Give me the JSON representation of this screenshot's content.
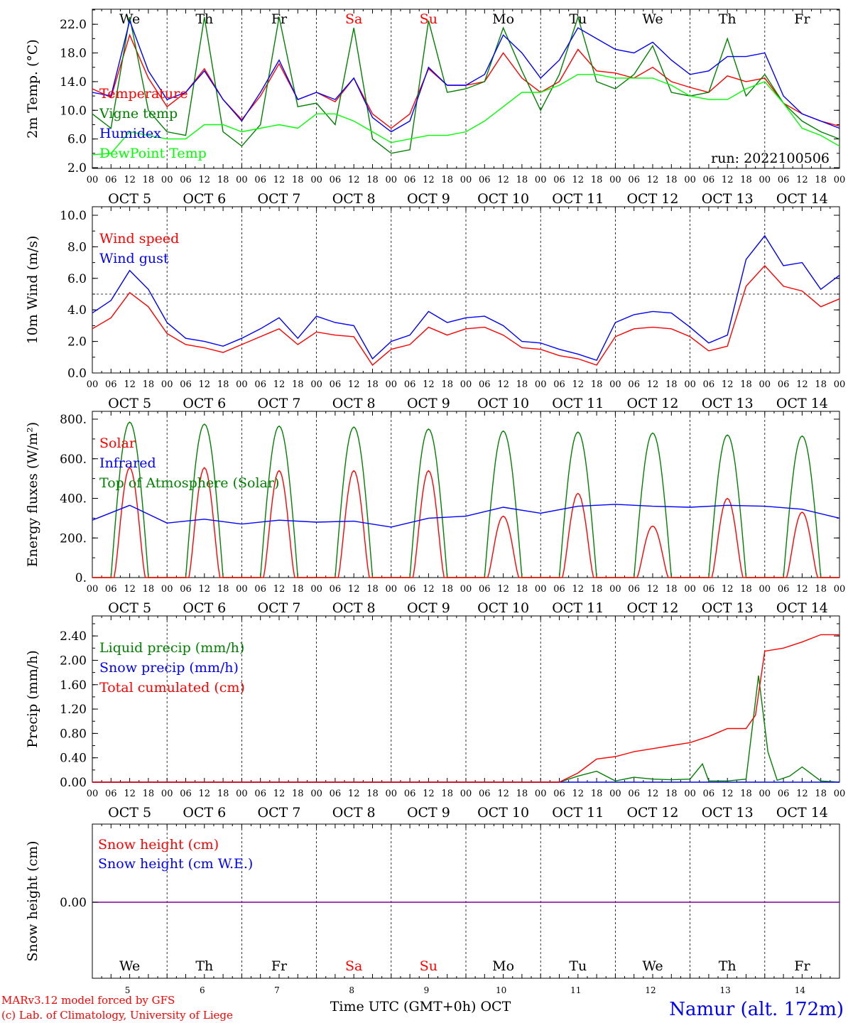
{
  "days": [
    {
      "abbr": "We",
      "date": "5",
      "label": "OCT  5",
      "color": "#000000"
    },
    {
      "abbr": "Th",
      "date": "6",
      "label": "OCT  6",
      "color": "#000000"
    },
    {
      "abbr": "Fr",
      "date": "7",
      "label": "OCT  7",
      "color": "#000000"
    },
    {
      "abbr": "Sa",
      "date": "8",
      "label": "OCT  8",
      "color": "#ff0000"
    },
    {
      "abbr": "Su",
      "date": "9",
      "label": "OCT  9",
      "color": "#ff0000"
    },
    {
      "abbr": "Mo",
      "date": "10",
      "label": "OCT 10",
      "color": "#000000"
    },
    {
      "abbr": "Tu",
      "date": "11",
      "label": "OCT 11",
      "color": "#000000"
    },
    {
      "abbr": "We",
      "date": "12",
      "label": "OCT 12",
      "color": "#000000"
    },
    {
      "abbr": "Th",
      "date": "13",
      "label": "OCT 13",
      "color": "#000000"
    },
    {
      "abbr": "Fr",
      "date": "14",
      "label": "OCT 14",
      "color": "#000000"
    }
  ],
  "hour_ticks": [
    "00",
    "06",
    "12",
    "18"
  ],
  "run_label": "run: 2022100506",
  "footer": {
    "model_line": "MARv3.12 model forced by GFS",
    "lab_line": "(c) Lab. of Climatology, University of Liege",
    "xlabel": "Time UTC (GMT+0h) OCT",
    "station": "Namur (alt. 172m)"
  },
  "chart_data": [
    {
      "type": "line",
      "ylabel": "2m Temp. (°C)",
      "ylim": [
        2.0,
        24.0
      ],
      "yticks": [
        2.0,
        6.0,
        10.0,
        14.0,
        18.0,
        22.0
      ],
      "ytick_labels": [
        "2.0",
        "6.0",
        "10.0",
        "14.0",
        "18.0",
        "22.0"
      ],
      "series": [
        {
          "name": "Temperature",
          "color": "#ff0000",
          "x": [
            0,
            6,
            12,
            18,
            24,
            30,
            36,
            42,
            48,
            54,
            60,
            66,
            72,
            78,
            84,
            90,
            96,
            102,
            108,
            114,
            120,
            126,
            132,
            138,
            144,
            150,
            156,
            162,
            168,
            174,
            180,
            186,
            192,
            198,
            204,
            210,
            216,
            222,
            228,
            234,
            240
          ],
          "y": [
            13.0,
            11.8,
            20.5,
            14.5,
            10.5,
            12.5,
            15.8,
            11.5,
            8.7,
            12.0,
            16.5,
            11.5,
            12.5,
            11.2,
            14.5,
            9.5,
            7.5,
            9.5,
            15.8,
            13.5,
            13.5,
            14.0,
            18.0,
            14.5,
            12.5,
            14.0,
            18.5,
            15.5,
            15.2,
            14.5,
            16.0,
            14.0,
            13.2,
            12.5,
            14.8,
            14.0,
            14.5,
            11.0,
            9.5,
            8.5,
            7.8
          ]
        },
        {
          "name": "Vigne temp",
          "color": "#008000",
          "x": [
            0,
            6,
            12,
            18,
            24,
            30,
            36,
            42,
            48,
            54,
            60,
            66,
            72,
            78,
            84,
            90,
            96,
            102,
            108,
            114,
            120,
            126,
            132,
            138,
            144,
            150,
            156,
            162,
            168,
            174,
            180,
            186,
            192,
            198,
            204,
            210,
            216,
            222,
            228,
            234,
            240
          ],
          "y": [
            9.5,
            7.5,
            23.0,
            10.0,
            7.0,
            6.5,
            23.0,
            7.0,
            5.0,
            8.0,
            23.0,
            10.5,
            11.0,
            8.0,
            21.5,
            6.0,
            4.0,
            4.5,
            22.5,
            12.5,
            13.0,
            14.0,
            21.5,
            15.5,
            10.0,
            15.0,
            23.0,
            14.0,
            13.0,
            15.0,
            19.0,
            12.5,
            12.0,
            12.5,
            20.0,
            12.0,
            15.0,
            11.0,
            8.5,
            7.0,
            6.0
          ]
        },
        {
          "name": "Humidex",
          "color": "#0000ff",
          "x": [
            0,
            6,
            12,
            18,
            24,
            30,
            36,
            42,
            48,
            54,
            60,
            66,
            72,
            78,
            84,
            90,
            96,
            102,
            108,
            114,
            120,
            126,
            132,
            138,
            144,
            150,
            156,
            162,
            168,
            174,
            180,
            186,
            192,
            198,
            204,
            210,
            216,
            222,
            228,
            234,
            240
          ],
          "y": [
            12.5,
            12.0,
            22.5,
            15.5,
            11.5,
            12.5,
            15.5,
            11.5,
            8.5,
            12.5,
            17.0,
            11.5,
            12.5,
            11.5,
            14.5,
            9.0,
            7.0,
            8.5,
            16.0,
            13.5,
            13.5,
            15.0,
            20.5,
            18.0,
            14.5,
            17.0,
            21.5,
            20.0,
            18.5,
            18.0,
            19.5,
            17.0,
            15.0,
            15.5,
            17.5,
            17.5,
            18.0,
            12.0,
            9.5,
            8.5,
            7.5
          ]
        },
        {
          "name": "DewPoint Temp",
          "color": "#00ff00",
          "x": [
            0,
            6,
            12,
            18,
            24,
            30,
            36,
            42,
            48,
            54,
            60,
            66,
            72,
            78,
            84,
            90,
            96,
            102,
            108,
            114,
            120,
            126,
            132,
            138,
            144,
            150,
            156,
            162,
            168,
            174,
            180,
            186,
            192,
            198,
            204,
            210,
            216,
            222,
            228,
            234,
            240
          ],
          "y": [
            3.8,
            4.0,
            7.0,
            6.5,
            6.0,
            6.0,
            8.0,
            8.0,
            7.0,
            7.5,
            8.0,
            7.5,
            9.5,
            9.5,
            8.5,
            7.0,
            5.5,
            6.0,
            6.5,
            6.5,
            7.0,
            8.5,
            10.5,
            12.5,
            12.5,
            13.5,
            15.0,
            15.0,
            14.5,
            14.5,
            14.5,
            13.5,
            12.0,
            11.5,
            11.5,
            13.0,
            14.0,
            11.0,
            7.5,
            6.5,
            5.0
          ]
        }
      ]
    },
    {
      "type": "line",
      "ylabel": "10m Wind (m/s)",
      "ylim": [
        0.0,
        10.0
      ],
      "yticks": [
        0.0,
        2.0,
        4.0,
        6.0,
        8.0,
        10.0
      ],
      "ytick_labels": [
        "0.0",
        "2.0",
        "4.0",
        "6.0",
        "8.0",
        "10.0"
      ],
      "reference_line": 5.0,
      "series": [
        {
          "name": "Wind speed",
          "color": "#ff0000",
          "x": [
            0,
            6,
            12,
            18,
            24,
            30,
            36,
            42,
            48,
            54,
            60,
            66,
            72,
            78,
            84,
            90,
            96,
            102,
            108,
            114,
            120,
            126,
            132,
            138,
            144,
            150,
            156,
            162,
            168,
            174,
            180,
            186,
            192,
            198,
            204,
            210,
            216,
            222,
            228,
            234,
            240
          ],
          "y": [
            2.8,
            3.5,
            5.1,
            4.2,
            2.5,
            1.8,
            1.6,
            1.3,
            1.8,
            2.3,
            2.8,
            1.8,
            2.6,
            2.4,
            2.3,
            0.5,
            1.5,
            1.8,
            2.9,
            2.4,
            2.8,
            2.9,
            2.4,
            1.6,
            1.5,
            1.1,
            0.9,
            0.5,
            2.3,
            2.8,
            2.9,
            2.8,
            2.3,
            1.4,
            1.7,
            5.5,
            6.8,
            5.5,
            5.2,
            4.2,
            4.7
          ]
        },
        {
          "name": "Wind gust",
          "color": "#0000ff",
          "x": [
            0,
            6,
            12,
            18,
            24,
            30,
            36,
            42,
            48,
            54,
            60,
            66,
            72,
            78,
            84,
            90,
            96,
            102,
            108,
            114,
            120,
            126,
            132,
            138,
            144,
            150,
            156,
            162,
            168,
            174,
            180,
            186,
            192,
            198,
            204,
            210,
            216,
            222,
            228,
            234,
            240
          ],
          "y": [
            3.8,
            4.6,
            6.5,
            5.3,
            3.2,
            2.2,
            2.0,
            1.7,
            2.2,
            2.8,
            3.5,
            2.2,
            3.6,
            3.2,
            3.0,
            0.9,
            2.0,
            2.4,
            3.9,
            3.2,
            3.5,
            3.6,
            3.0,
            2.0,
            1.9,
            1.5,
            1.2,
            0.8,
            3.2,
            3.7,
            3.9,
            3.8,
            2.9,
            1.9,
            2.4,
            7.2,
            8.7,
            6.8,
            7.0,
            5.3,
            6.2
          ]
        }
      ]
    },
    {
      "type": "line",
      "ylabel": "Energy fluxes (W/m²)",
      "ylim": [
        0,
        800
      ],
      "yticks": [
        0,
        200,
        400,
        600,
        800
      ],
      "ytick_labels": [
        "0.",
        "200.",
        "400.",
        "600.",
        "800."
      ],
      "solar_peaks": [
        555,
        555,
        540,
        540,
        540,
        310,
        425,
        260,
        400,
        330
      ],
      "toa_peaks": [
        785,
        775,
        765,
        760,
        750,
        740,
        735,
        730,
        720,
        715
      ],
      "series": [
        {
          "name": "Solar",
          "color": "#ff0000"
        },
        {
          "name": "Infrared",
          "color": "#0000ff",
          "x": [
            0,
            12,
            24,
            36,
            48,
            60,
            72,
            84,
            96,
            108,
            120,
            132,
            144,
            156,
            168,
            180,
            192,
            204,
            216,
            228,
            240
          ],
          "y": [
            290,
            365,
            275,
            295,
            270,
            290,
            280,
            285,
            255,
            300,
            310,
            355,
            325,
            360,
            370,
            360,
            355,
            365,
            360,
            345,
            300
          ]
        },
        {
          "name": "Top of Atmosphere (Solar)",
          "color": "#008000"
        }
      ]
    },
    {
      "type": "line",
      "ylabel": "Precip (mm/h)",
      "ylim": [
        0.0,
        2.6
      ],
      "yticks": [
        0.0,
        0.4,
        0.8,
        1.2,
        1.6,
        2.0,
        2.4
      ],
      "ytick_labels": [
        "0.00",
        "0.40",
        "0.80",
        "1.20",
        "1.60",
        "2.00",
        "2.40"
      ],
      "series": [
        {
          "name": "Liquid precip (mm/h)",
          "color": "#008000",
          "x": [
            0,
            150,
            156,
            162,
            168,
            174,
            180,
            186,
            192,
            196,
            198,
            204,
            210,
            214,
            217,
            220,
            224,
            228,
            234,
            240
          ],
          "y": [
            0.0,
            0.0,
            0.1,
            0.18,
            0.02,
            0.08,
            0.05,
            0.04,
            0.05,
            0.3,
            0.02,
            0.02,
            0.05,
            1.75,
            0.5,
            0.03,
            0.1,
            0.25,
            0.02,
            0.0
          ]
        },
        {
          "name": "Snow precip (mm/h)",
          "color": "#0000ff",
          "x": [
            0,
            240
          ],
          "y": [
            0.0,
            0.0
          ]
        },
        {
          "name": "Total cumulated (cm)",
          "color": "#ff0000",
          "x": [
            0,
            150,
            156,
            162,
            168,
            174,
            180,
            186,
            192,
            198,
            204,
            210,
            213,
            216,
            222,
            228,
            234,
            240
          ],
          "y": [
            0.0,
            0.0,
            0.15,
            0.38,
            0.42,
            0.5,
            0.55,
            0.6,
            0.65,
            0.75,
            0.88,
            0.88,
            1.1,
            2.15,
            2.2,
            2.3,
            2.42,
            2.42
          ]
        }
      ]
    },
    {
      "type": "line",
      "ylabel": "Snow height (cm)",
      "yticks": [
        0.0
      ],
      "ytick_labels": [
        "0.00"
      ],
      "series": [
        {
          "name": "Snow height (cm)",
          "color": "#ff0000",
          "x": [
            0,
            240
          ],
          "y": [
            0,
            0
          ]
        },
        {
          "name": "Snow height (cm W.E.)",
          "color": "#0000ff",
          "x": [
            0,
            240
          ],
          "y": [
            0,
            0
          ]
        }
      ]
    }
  ]
}
